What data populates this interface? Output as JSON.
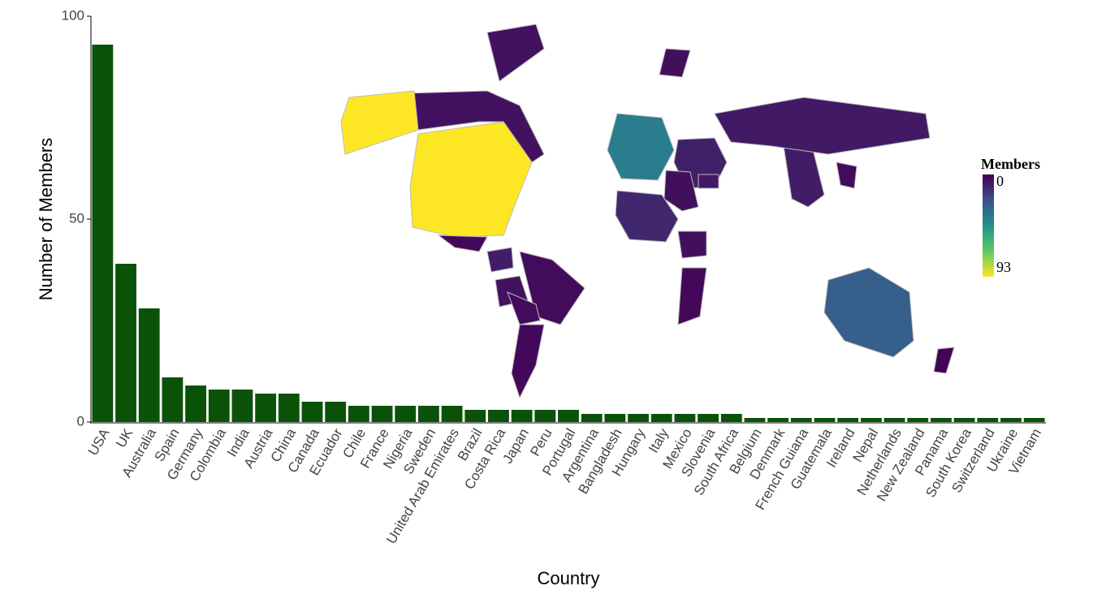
{
  "chart_data": {
    "type": "bar",
    "x_label": "Country",
    "y_label": "Number of Members",
    "categories": [
      "USA",
      "UK",
      "Australia",
      "Spain",
      "Germany",
      "Colombia",
      "India",
      "Austria",
      "China",
      "Canada",
      "Ecuador",
      "Chile",
      "France",
      "Nigeria",
      "Sweden",
      "United Arab Emirates",
      "Brazil",
      "Costa Rica",
      "Japan",
      "Peru",
      "Portugal",
      "Argentina",
      "Bangladesh",
      "Hungary",
      "Italy",
      "Mexico",
      "Slovenia",
      "South Africa",
      "Belgium",
      "Denmark",
      "French Guiana",
      "Guatemala",
      "Ireland",
      "Nepal",
      "Netherlands",
      "New Zealand",
      "Panama",
      "South Korea",
      "Switzerland",
      "Ukraine",
      "Vietnam"
    ],
    "values": [
      93,
      39,
      28,
      11,
      9,
      8,
      8,
      7,
      7,
      5,
      5,
      4,
      4,
      4,
      4,
      4,
      3,
      3,
      3,
      3,
      3,
      2,
      2,
      2,
      2,
      2,
      2,
      2,
      1,
      1,
      1,
      1,
      1,
      1,
      1,
      1,
      1,
      1,
      1,
      1,
      1
    ],
    "color": "#0b5209",
    "ylim": [
      0,
      100
    ],
    "yticks": [
      0,
      50,
      100
    ],
    "colorbar": {
      "title": "Members",
      "min": 0,
      "max": 93,
      "colors": [
        "#440154",
        "#3b528b",
        "#21918c",
        "#5ec962",
        "#fde725"
      ]
    }
  }
}
